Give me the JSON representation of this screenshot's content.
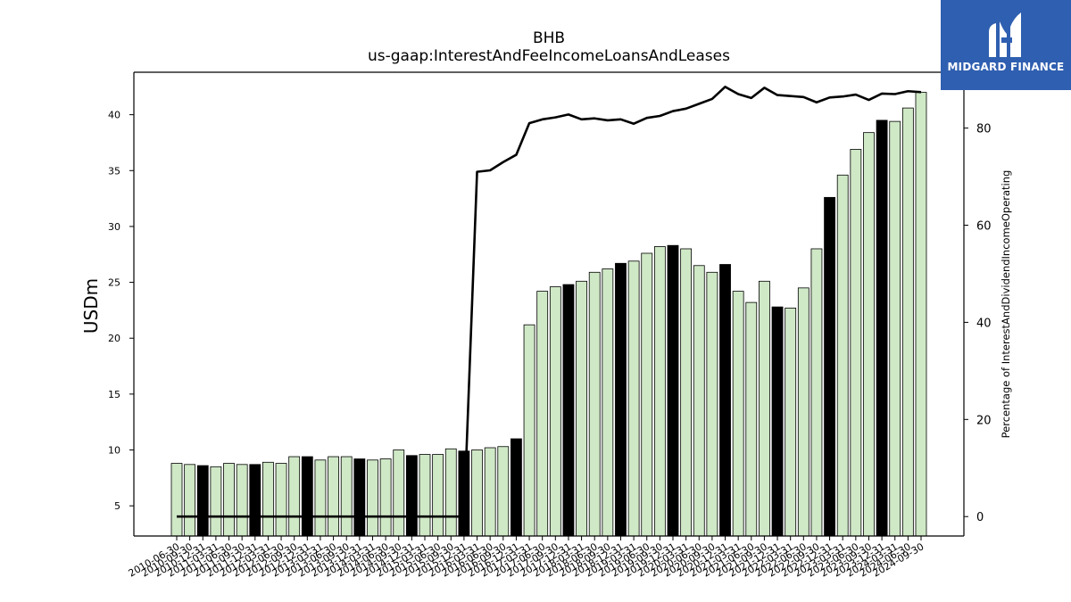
{
  "chart_data": {
    "type": "bar",
    "title": "BHB",
    "subtitle": "us-gaap:InterestAndFeeIncomeLoansAndLeases",
    "ylabel": "USDm",
    "y2label": "Percentage of InterestAndDividendIncomeOperating",
    "ylim": [
      2.3,
      43.8
    ],
    "y2lim": [
      -4,
      91.5
    ],
    "yticks": [
      5,
      10,
      15,
      20,
      25,
      30,
      35,
      40
    ],
    "y2ticks": [
      0,
      20,
      40,
      60,
      80
    ],
    "grid": false,
    "categories": [
      "2010-06-30",
      "2010-09-30",
      "2010-12-31",
      "2011-03-31",
      "2011-06-30",
      "2011-09-30",
      "2011-12-31",
      "2012-03-31",
      "2012-06-30",
      "2012-09-30",
      "2012-12-31",
      "2013-03-31",
      "2013-06-30",
      "2013-09-30",
      "2013-12-31",
      "2014-03-31",
      "2014-06-30",
      "2014-09-30",
      "2014-12-31",
      "2015-03-31",
      "2015-06-30",
      "2015-09-30",
      "2015-12-31",
      "2016-03-31",
      "2016-06-30",
      "2016-09-30",
      "2016-12-31",
      "2017-03-31",
      "2017-06-30",
      "2017-09-30",
      "2017-12-31",
      "2018-03-31",
      "2018-06-30",
      "2018-09-30",
      "2018-12-31",
      "2019-03-31",
      "2019-06-30",
      "2019-09-30",
      "2019-12-31",
      "2020-03-31",
      "2020-06-30",
      "2020-09-30",
      "2020-12-31",
      "2021-03-31",
      "2021-06-30",
      "2021-09-30",
      "2021-12-31",
      "2022-03-31",
      "2022-06-30",
      "2022-09-30",
      "2022-12-31",
      "2023-03-31",
      "2023-06-30",
      "2023-09-30",
      "2023-12-31",
      "2024-03-31",
      "2024-06-30",
      "2024-09-30"
    ],
    "series": [
      {
        "type": "bar",
        "values": [
          8.8,
          8.7,
          8.6,
          8.5,
          8.8,
          8.7,
          8.7,
          8.9,
          8.8,
          9.4,
          9.4,
          9.1,
          9.4,
          9.4,
          9.2,
          9.1,
          9.2,
          10.0,
          9.5,
          9.6,
          9.6,
          10.1,
          9.9,
          10.0,
          10.2,
          10.3,
          11.0,
          21.2,
          24.2,
          24.6,
          24.8,
          25.1,
          25.9,
          26.2,
          26.7,
          26.9,
          27.6,
          28.2,
          28.3,
          28.0,
          26.5,
          25.9,
          26.6,
          24.2,
          23.2,
          25.1,
          22.8,
          22.7,
          24.5,
          28.0,
          32.6,
          34.6,
          36.9,
          38.4,
          39.5,
          39.4,
          40.6,
          42.0
        ],
        "highlight": [
          false,
          false,
          true,
          false,
          false,
          false,
          true,
          false,
          false,
          false,
          true,
          false,
          false,
          false,
          true,
          false,
          false,
          false,
          true,
          false,
          false,
          false,
          true,
          false,
          false,
          false,
          true,
          false,
          false,
          false,
          true,
          false,
          false,
          false,
          true,
          false,
          false,
          false,
          true,
          false,
          false,
          false,
          true,
          false,
          false,
          false,
          true,
          false,
          false,
          false,
          true,
          false,
          false,
          false,
          true,
          false,
          false,
          false
        ]
      },
      {
        "type": "line",
        "axis": "right",
        "values": [
          0,
          0,
          0,
          0,
          0,
          0,
          0,
          0,
          0,
          0,
          0,
          0,
          0,
          0,
          0,
          0,
          0,
          0,
          0,
          0,
          0,
          0,
          0,
          71,
          71.3,
          73,
          74.5,
          81,
          81.8,
          82.2,
          82.8,
          81.8,
          82,
          81.6,
          81.8,
          80.9,
          82.1,
          82.5,
          83.5,
          84,
          85,
          86,
          88.5,
          87,
          86.2,
          88.3,
          86.8,
          86.6,
          86.4,
          85.3,
          86.3,
          86.5,
          86.9,
          85.8,
          87.1,
          87,
          87.6,
          87.4
        ]
      }
    ],
    "colors": {
      "bar": "#cfe8c6",
      "bar_highlight": "#000000",
      "line": "#000000",
      "edge": "#000000"
    }
  },
  "brand": {
    "name": "MIDGARD FINANCE",
    "bg": "#2f5fb0"
  }
}
